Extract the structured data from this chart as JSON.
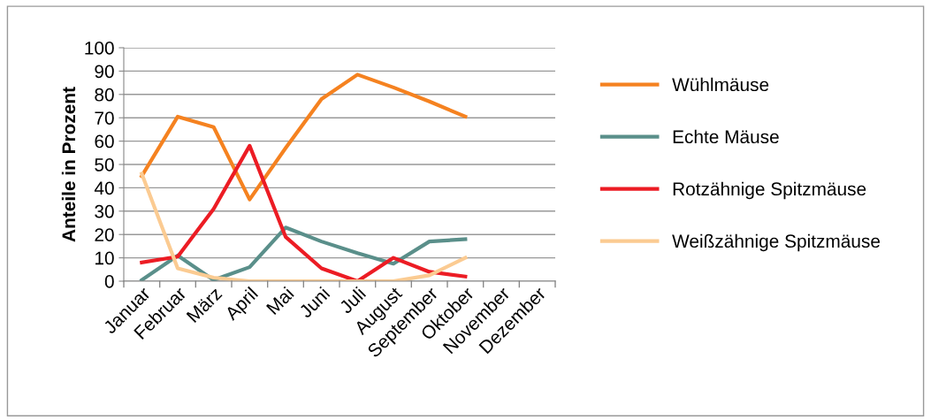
{
  "chart_data": {
    "type": "line",
    "ylabel": "Anteile in Prozent",
    "categories": [
      "Januar",
      "Februar",
      "März",
      "April",
      "Mai",
      "Juni",
      "Juli",
      "August",
      "September",
      "Oktober",
      "November",
      "Dezember"
    ],
    "series": [
      {
        "name": "Wühlmäuse",
        "color": "#f58220",
        "values": [
          45,
          70.5,
          66,
          35,
          57,
          78,
          88.5,
          83,
          77,
          70.5,
          null,
          null
        ]
      },
      {
        "name": "Echte Mäuse",
        "color": "#5a8f8a",
        "values": [
          0.5,
          11,
          0.5,
          6,
          23,
          17,
          12,
          7.5,
          17,
          18,
          null,
          null
        ]
      },
      {
        "name": "Rotzähnige Spitzmäuse",
        "color": "#ec1c24",
        "values": [
          8,
          10.5,
          31,
          58,
          19,
          5.5,
          0,
          10,
          4,
          2,
          null,
          null
        ]
      },
      {
        "name": "Weißzähnige Spitzmäuse",
        "color": "#fbcb92",
        "values": [
          46,
          5.5,
          1.5,
          0,
          0,
          0,
          0,
          0,
          2.5,
          10,
          null,
          null
        ]
      }
    ],
    "ylim": [
      0,
      100
    ],
    "yticks": [
      0,
      10,
      20,
      30,
      40,
      50,
      60,
      70,
      80,
      90,
      100
    ],
    "grid": "y",
    "legend": "right",
    "marker": "none",
    "line_style": "solid"
  }
}
